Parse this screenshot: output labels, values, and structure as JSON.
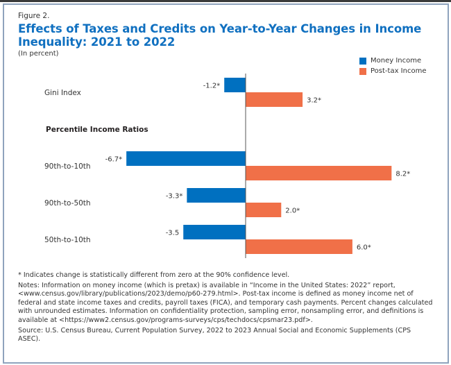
{
  "figure_label": "Figure 2.",
  "title": "Effects of Taxes and Credits on Year-to-Year Changes in Income Inequality: 2021 to 2022",
  "subtitle": "(In percent)",
  "colors": {
    "money_income": "#0070c0",
    "post_tax_income": "#f07048",
    "title": "#1070c0"
  },
  "chart_data": {
    "type": "bar",
    "orientation": "horizontal",
    "title": "Effects of Taxes and Credits on Year-to-Year Changes in Income Inequality: 2021 to 2022",
    "subtitle": "(In percent)",
    "categories": [
      "Gini Index",
      "90th-to-10th",
      "90th-to-50th",
      "50th-to-10th"
    ],
    "group_heading": {
      "text": "Percentile Income Ratios",
      "before_category": "90th-to-10th"
    },
    "series": [
      {
        "name": "Money Income",
        "color": "#0070c0",
        "values": [
          -1.2,
          -6.7,
          -3.3,
          -3.5
        ],
        "labels": [
          "-1.2*",
          "-6.7*",
          "-3.3*",
          "-3.5"
        ]
      },
      {
        "name": "Post-tax Income",
        "color": "#f07048",
        "values": [
          3.2,
          8.2,
          2.0,
          6.0
        ],
        "labels": [
          "3.2*",
          "8.2*",
          "2.0*",
          "6.0*"
        ]
      }
    ],
    "xlim": [
      -7,
      9
    ],
    "grid": false,
    "legend": "top-right",
    "xlabel": "",
    "ylabel": ""
  },
  "notes": {
    "significance": "* Indicates change is statistically different from zero at the 90% confidence level.",
    "notes": "Notes: Information on money income (which is pretax) is available in “Income in the United States: 2022” report, <www.census.gov/library/publications/2023/demo/p60-279.html>. Post-tax income is defined as money income net of federal and state income taxes and credits, payroll taxes (FICA), and temporary cash payments. Percent changes calculated with unrounded estimates. Information on confidentiality protection, sampling error, nonsampling error, and definitions is available at <https://www2.census.gov/programs-surveys/cps/techdocs/cpsmar23.pdf>.",
    "source": "Source: U.S. Census Bureau, Current Population Survey, 2022 to 2023 Annual Social and Economic Supplements (CPS ASEC)."
  }
}
